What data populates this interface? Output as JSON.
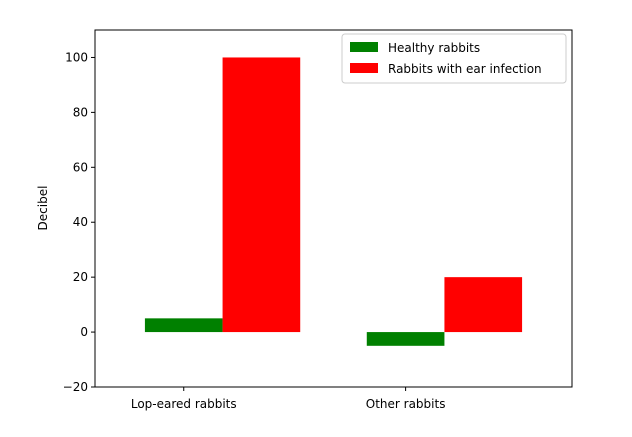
{
  "chart_data": {
    "type": "bar",
    "title": "",
    "xlabel": "",
    "ylabel": "Decibel",
    "categories": [
      "Lop-eared rabbits",
      "Other rabbits"
    ],
    "series": [
      {
        "name": "Healthy rabbits",
        "values": [
          5,
          -5
        ],
        "color": "#008000"
      },
      {
        "name": "Rabbits with ear infection",
        "values": [
          100,
          20
        ],
        "color": "#ff0000"
      }
    ],
    "ylim": [
      -20,
      110
    ],
    "yticks": [
      -20,
      0,
      20,
      40,
      60,
      80,
      100
    ],
    "ytick_labels": [
      "−20",
      "0",
      "20",
      "40",
      "60",
      "80",
      "100"
    ],
    "grid": false,
    "legend_position": "top-right"
  }
}
